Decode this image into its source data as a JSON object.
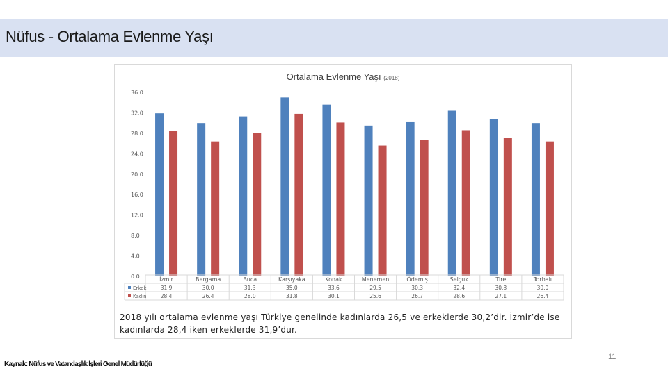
{
  "slide": {
    "title": "Nüfus - Ortalama Evlenme Yaşı",
    "caption": "2018 yılı ortalama evlenme yaşı Türkiye genelinde kadınlarda 26,5 ve erkeklerde 30,2’dir. İzmir’de ise kadınlarda 28,4 iken erkeklerde 31,9’dur.",
    "source": "Kaynak: Nüfus ve Vatandaşlık İşleri Genel Müdürlüğü",
    "page_number": "11"
  },
  "chart_data": {
    "type": "bar",
    "title": "Ortalama Evlenme Yaşı",
    "subtitle": "(2018)",
    "categories": [
      "İzmir",
      "Bergama",
      "Buca",
      "Karşıyaka",
      "Konak",
      "Menemen",
      "Ödemiş",
      "Selçuk",
      "Tire",
      "Torbalı"
    ],
    "series": [
      {
        "name": "Erkek",
        "color": "#4f81bd",
        "values": [
          31.9,
          30.0,
          31.3,
          35.0,
          33.6,
          29.5,
          30.3,
          32.4,
          30.8,
          30.0
        ],
        "labels": [
          "31.9",
          "30.0",
          "31.3",
          "35.0",
          "33.6",
          "29.5",
          "30.3",
          "32.4",
          "30.8",
          "30.0"
        ]
      },
      {
        "name": "Kadın",
        "color": "#c0504d",
        "values": [
          28.4,
          26.4,
          28.0,
          31.8,
          30.1,
          25.6,
          26.7,
          28.6,
          27.1,
          26.4
        ],
        "labels": [
          "28.4",
          "26.4",
          "28.0",
          "31.8",
          "30.1",
          "25.6",
          "26.7",
          "28.6",
          "27.1",
          "26.4"
        ]
      }
    ],
    "ylim": [
      0,
      36
    ],
    "yticks": [
      "0.0",
      "4.0",
      "8.0",
      "12.0",
      "16.0",
      "20.0",
      "24.0",
      "28.0",
      "32.0",
      "36.0"
    ],
    "grid": false,
    "legend": "data-table"
  }
}
